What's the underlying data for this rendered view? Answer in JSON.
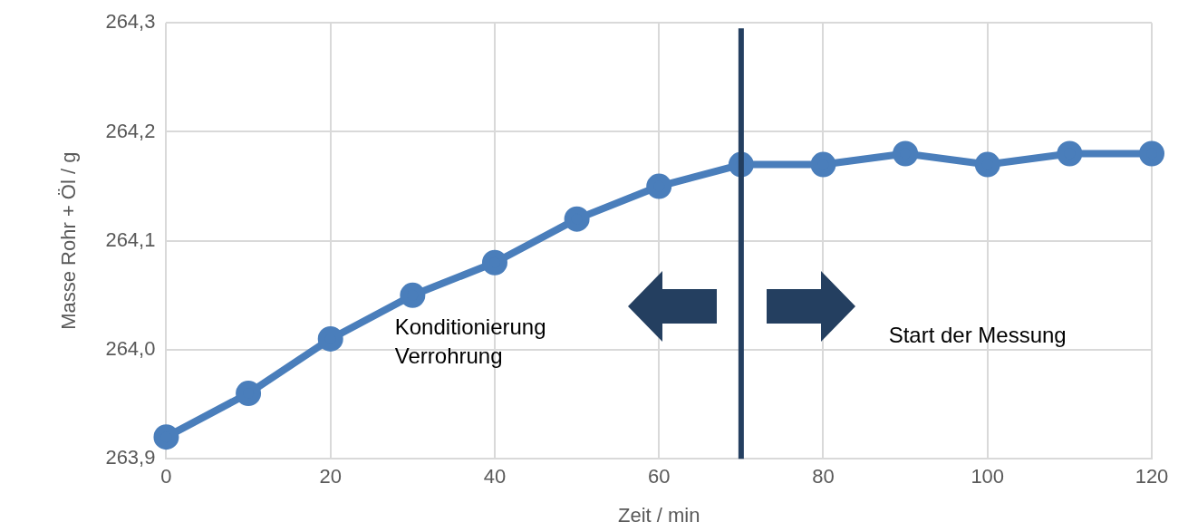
{
  "chart_data": {
    "type": "line",
    "xlabel": "Zeit / min",
    "ylabel": "Masse Rohr + Öl / g",
    "x": [
      0,
      10,
      20,
      30,
      40,
      50,
      60,
      70,
      80,
      90,
      100,
      110,
      120
    ],
    "series": [
      {
        "color": "#4a7ebb",
        "values": [
          263.92,
          263.96,
          264.01,
          264.05,
          264.08,
          264.12,
          264.15,
          264.17,
          264.17,
          264.18,
          264.17,
          264.18,
          264.18
        ]
      }
    ],
    "xlim": [
      0,
      120
    ],
    "xticks": [
      0,
      20,
      40,
      60,
      80,
      100,
      120
    ],
    "ylim": [
      263.9,
      264.3
    ],
    "yticks": [
      {
        "value": 263.9,
        "label": "263,9"
      },
      {
        "value": 264.0,
        "label": "264,0"
      },
      {
        "value": 264.1,
        "label": "264,1"
      },
      {
        "value": 264.2,
        "label": "264,2"
      },
      {
        "value": 264.3,
        "label": "264,3"
      }
    ],
    "grid": true,
    "legend": false,
    "marker": "circle",
    "line_style": "solid",
    "ref_lines": [
      {
        "axis": "x",
        "value": 70,
        "color": "#243f60"
      }
    ],
    "annotations": [
      "Konditionierung\nVerrohrung",
      "Start der Messung"
    ]
  }
}
